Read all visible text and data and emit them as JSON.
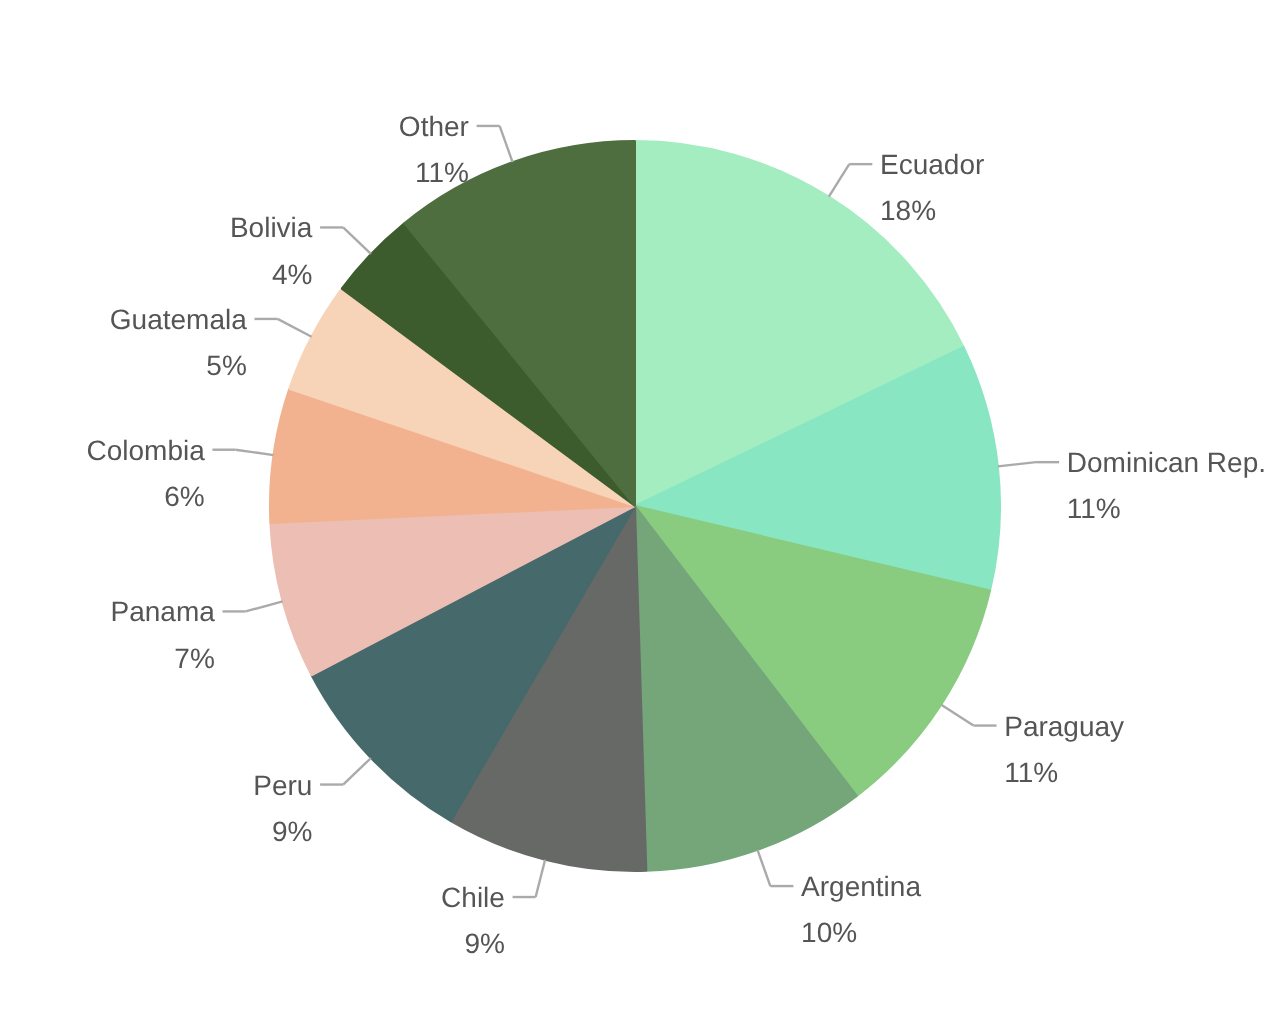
{
  "chart_data": {
    "type": "pie",
    "categories": [
      "Ecuador",
      "Dominican Rep.",
      "Paraguay",
      "Argentina",
      "Chile",
      "Peru",
      "Panama",
      "Colombia",
      "Guatemala",
      "Bolivia",
      "Other"
    ],
    "values": [
      18,
      11,
      11,
      10,
      9,
      9,
      7,
      6,
      5,
      4,
      11
    ],
    "value_labels": [
      "18%",
      "11%",
      "11%",
      "10%",
      "9%",
      "9%",
      "7%",
      "6%",
      "5%",
      "4%",
      "11%"
    ],
    "colors": [
      "#a3edc0",
      "#88e6c2",
      "#89cc80",
      "#74a67a",
      "#676967",
      "#46696b",
      "#ecbeb4",
      "#f2b28f",
      "#f7d4b8",
      "#3d5c2e",
      "#4f6e40"
    ]
  }
}
